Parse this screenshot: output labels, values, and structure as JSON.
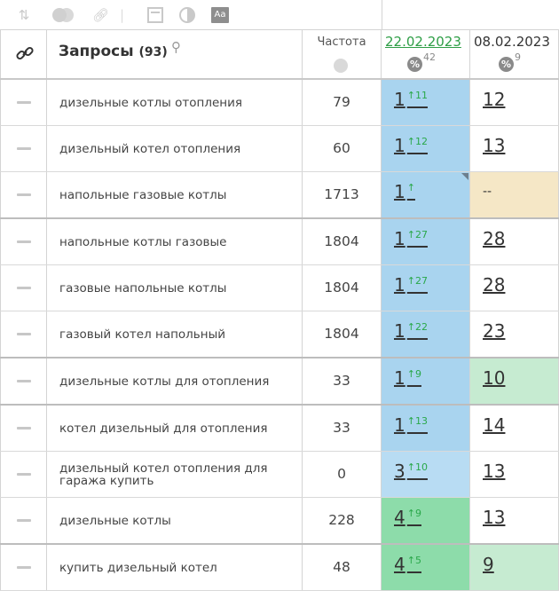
{
  "toolbar": {
    "icons": [
      "sort-icon",
      "toggle-icon",
      "link-icon",
      "table-icon",
      "contrast-icon",
      "font-icon"
    ],
    "font_label": "Aa"
  },
  "header": {
    "queries_title": "Запросы",
    "queries_count": "(93)",
    "frequency_label": "Частота",
    "date1": "22.02.2023",
    "date1_pct": "42",
    "date2": "08.02.2023",
    "date2_pct": "9",
    "pct_symbol": "%"
  },
  "rows": [
    {
      "query": "дизельные котлы отопления",
      "freq": "79",
      "pos1": "1",
      "chg1": "↑11",
      "pos2": "12"
    },
    {
      "query": "дизельный котел отопления",
      "freq": "60",
      "pos1": "1",
      "chg1": "↑12",
      "pos2": "13"
    },
    {
      "query": "напольные газовые котлы",
      "freq": "1713",
      "pos1": "1",
      "chg1": "↑",
      "pos2": "--"
    },
    {
      "query": "напольные котлы газовые",
      "freq": "1804",
      "pos1": "1",
      "chg1": "↑27",
      "pos2": "28"
    },
    {
      "query": "газовые напольные котлы",
      "freq": "1804",
      "pos1": "1",
      "chg1": "↑27",
      "pos2": "28"
    },
    {
      "query": "газовый котел напольный",
      "freq": "1804",
      "pos1": "1",
      "chg1": "↑22",
      "pos2": "23"
    },
    {
      "query": "дизельные котлы для отопления",
      "freq": "33",
      "pos1": "1",
      "chg1": "↑9",
      "pos2": "10"
    },
    {
      "query": "котел дизельный для отопления",
      "freq": "33",
      "pos1": "1",
      "chg1": "↑13",
      "pos2": "14"
    },
    {
      "query": "дизельный котел отопления для гаража купить",
      "freq": "0",
      "pos1": "3",
      "chg1": "↑10",
      "pos2": "13"
    },
    {
      "query": "дизельные котлы",
      "freq": "228",
      "pos1": "4",
      "chg1": "↑9",
      "pos2": "13"
    },
    {
      "query": "купить дизельный котел",
      "freq": "48",
      "pos1": "4",
      "chg1": "↑5",
      "pos2": "9"
    }
  ],
  "colors": {
    "top_position": "#a9d4ef",
    "top3_position": "#b8dcf3",
    "top5_position": "#8ddcaa",
    "top10_position": "#c6ebd1",
    "no_position": "#f5e7c6",
    "change_up": "#2aa84a"
  }
}
